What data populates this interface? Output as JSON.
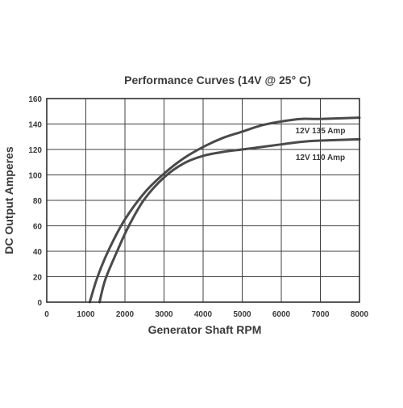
{
  "chart_data": {
    "type": "line",
    "title": "Performance Curves (14V @ 25° C)",
    "xlabel": "Generator Shaft RPM",
    "ylabel": "DC Output Amperes",
    "xlim": [
      0,
      8000
    ],
    "ylim": [
      0,
      160
    ],
    "x_ticks": [
      0,
      1000,
      2000,
      3000,
      4000,
      5000,
      6000,
      7000,
      8000
    ],
    "y_ticks": [
      0,
      20,
      40,
      60,
      80,
      100,
      120,
      140,
      160
    ],
    "grid": true,
    "series": [
      {
        "name": "12V 135 Amp",
        "x": [
          1100,
          1300,
          1600,
          2000,
          2500,
          3000,
          3500,
          4000,
          4500,
          5000,
          5500,
          6000,
          6500,
          7000,
          8000
        ],
        "y": [
          0,
          20,
          42,
          65,
          86,
          101,
          113,
          122,
          129,
          134,
          139,
          142,
          144,
          144,
          145
        ]
      },
      {
        "name": "12V 110 Amp",
        "x": [
          1350,
          1500,
          1800,
          2100,
          2500,
          3000,
          3500,
          4000,
          4500,
          5000,
          5500,
          6000,
          6500,
          7000,
          8000
        ],
        "y": [
          0,
          18,
          40,
          60,
          81,
          98,
          109,
          115,
          118,
          120,
          122,
          124,
          126,
          127,
          128
        ]
      }
    ]
  }
}
